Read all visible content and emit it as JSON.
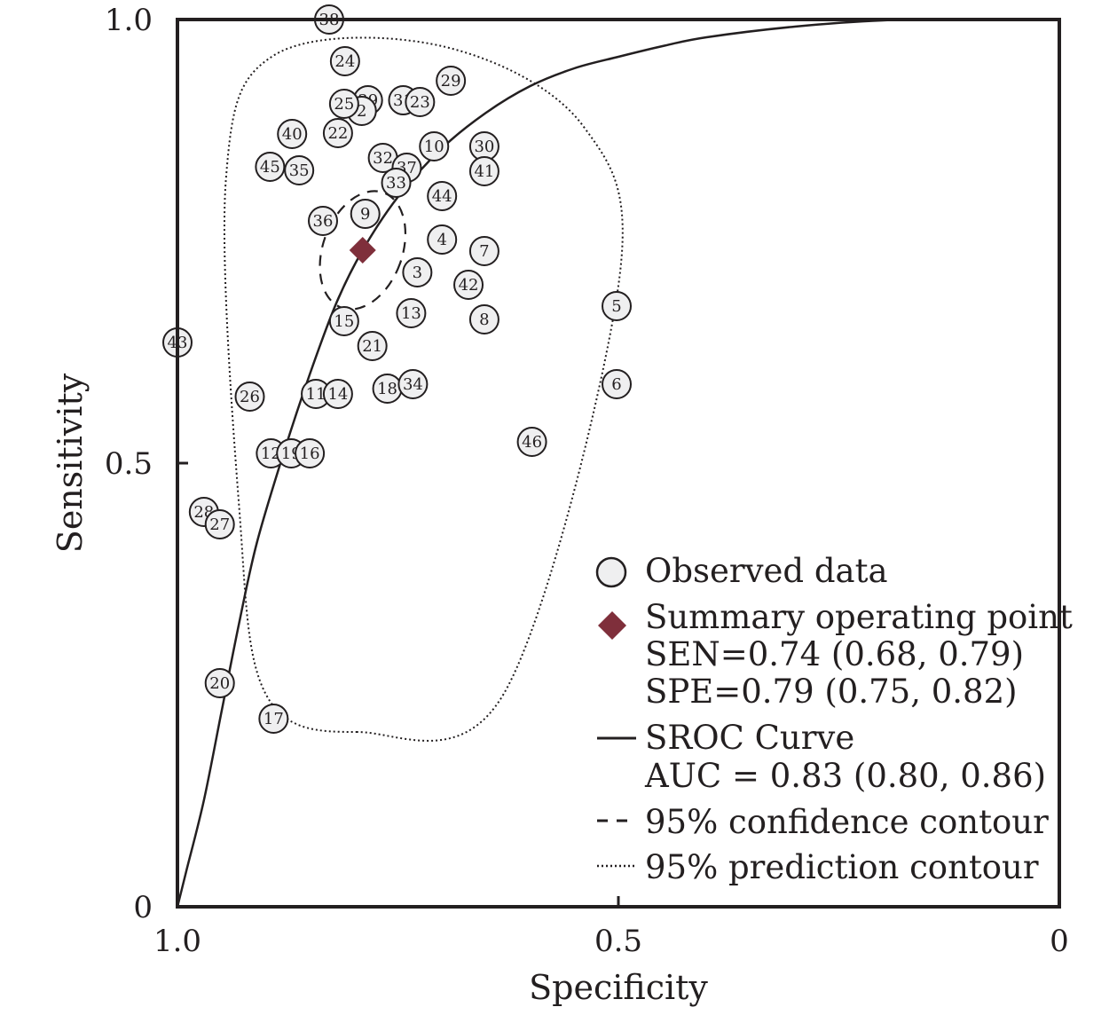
{
  "chart_data": {
    "type": "scatter",
    "xlabel": "Specificity",
    "ylabel": "Sensitivity",
    "x_reversed": true,
    "xlim": [
      1.0,
      0
    ],
    "ylim": [
      0,
      1.0
    ],
    "x_ticks": [
      {
        "value": 1.0,
        "label": "1.0"
      },
      {
        "value": 0.5,
        "label": "0.5"
      },
      {
        "value": 0,
        "label": "0"
      }
    ],
    "y_ticks": [
      {
        "value": 1.0,
        "label": "1.0"
      },
      {
        "value": 0.5,
        "label": "0.5"
      },
      {
        "value": 0,
        "label": "0"
      }
    ],
    "grid": false,
    "legend_position": "bottom-right",
    "studies": [
      {
        "id": "38",
        "spec": 0.828,
        "sens": 1.0
      },
      {
        "id": "24",
        "spec": 0.81,
        "sens": 0.953
      },
      {
        "id": "29",
        "spec": 0.69,
        "sens": 0.931
      },
      {
        "id": "39",
        "spec": 0.784,
        "sens": 0.909
      },
      {
        "id": "2",
        "spec": 0.791,
        "sens": 0.897
      },
      {
        "id": "25",
        "spec": 0.811,
        "sens": 0.905
      },
      {
        "id": "31",
        "spec": 0.744,
        "sens": 0.909
      },
      {
        "id": "23",
        "spec": 0.725,
        "sens": 0.907
      },
      {
        "id": "40",
        "spec": 0.87,
        "sens": 0.871
      },
      {
        "id": "22",
        "spec": 0.818,
        "sens": 0.872
      },
      {
        "id": "10",
        "spec": 0.709,
        "sens": 0.857
      },
      {
        "id": "30",
        "spec": 0.652,
        "sens": 0.857
      },
      {
        "id": "45",
        "spec": 0.895,
        "sens": 0.834
      },
      {
        "id": "35",
        "spec": 0.862,
        "sens": 0.83
      },
      {
        "id": "32",
        "spec": 0.767,
        "sens": 0.844
      },
      {
        "id": "37",
        "spec": 0.74,
        "sens": 0.833
      },
      {
        "id": "41",
        "spec": 0.652,
        "sens": 0.829
      },
      {
        "id": "33",
        "spec": 0.752,
        "sens": 0.816
      },
      {
        "id": "44",
        "spec": 0.7,
        "sens": 0.801
      },
      {
        "id": "36",
        "spec": 0.835,
        "sens": 0.773
      },
      {
        "id": "9",
        "spec": 0.787,
        "sens": 0.781
      },
      {
        "id": "4",
        "spec": 0.7,
        "sens": 0.752
      },
      {
        "id": "7",
        "spec": 0.652,
        "sens": 0.739
      },
      {
        "id": "3",
        "spec": 0.728,
        "sens": 0.715
      },
      {
        "id": "42",
        "spec": 0.67,
        "sens": 0.701
      },
      {
        "id": "5",
        "spec": 0.502,
        "sens": 0.677
      },
      {
        "id": "13",
        "spec": 0.735,
        "sens": 0.669
      },
      {
        "id": "15",
        "spec": 0.811,
        "sens": 0.66
      },
      {
        "id": "8",
        "spec": 0.652,
        "sens": 0.662
      },
      {
        "id": "43",
        "spec": 1.0,
        "sens": 0.636
      },
      {
        "id": "21",
        "spec": 0.779,
        "sens": 0.632
      },
      {
        "id": "26",
        "spec": 0.918,
        "sens": 0.575
      },
      {
        "id": "11",
        "spec": 0.843,
        "sens": 0.578
      },
      {
        "id": "14",
        "spec": 0.818,
        "sens": 0.578
      },
      {
        "id": "18",
        "spec": 0.762,
        "sens": 0.584
      },
      {
        "id": "34",
        "spec": 0.733,
        "sens": 0.589
      },
      {
        "id": "6",
        "spec": 0.502,
        "sens": 0.589
      },
      {
        "id": "46",
        "spec": 0.598,
        "sens": 0.524
      },
      {
        "id": "12",
        "spec": 0.894,
        "sens": 0.511
      },
      {
        "id": "19",
        "spec": 0.871,
        "sens": 0.511
      },
      {
        "id": "16",
        "spec": 0.85,
        "sens": 0.511
      },
      {
        "id": "28",
        "spec": 0.97,
        "sens": 0.445
      },
      {
        "id": "27",
        "spec": 0.952,
        "sens": 0.431
      },
      {
        "id": "20",
        "spec": 0.952,
        "sens": 0.252
      },
      {
        "id": "17",
        "spec": 0.891,
        "sens": 0.212
      }
    ],
    "summary_point": {
      "spec": 0.79,
      "sens": 0.74
    },
    "sroc_curve": [
      {
        "spec": 1.0,
        "sens": 0.0
      },
      {
        "spec": 0.99,
        "sens": 0.04
      },
      {
        "spec": 0.97,
        "sens": 0.12
      },
      {
        "spec": 0.95,
        "sens": 0.22
      },
      {
        "spec": 0.93,
        "sens": 0.32
      },
      {
        "spec": 0.91,
        "sens": 0.41
      },
      {
        "spec": 0.88,
        "sens": 0.51
      },
      {
        "spec": 0.85,
        "sens": 0.6
      },
      {
        "spec": 0.82,
        "sens": 0.68
      },
      {
        "spec": 0.79,
        "sens": 0.74
      },
      {
        "spec": 0.75,
        "sens": 0.8
      },
      {
        "spec": 0.7,
        "sens": 0.855
      },
      {
        "spec": 0.65,
        "sens": 0.895
      },
      {
        "spec": 0.6,
        "sens": 0.925
      },
      {
        "spec": 0.55,
        "sens": 0.945
      },
      {
        "spec": 0.5,
        "sens": 0.958
      },
      {
        "spec": 0.45,
        "sens": 0.97
      },
      {
        "spec": 0.4,
        "sens": 0.98
      },
      {
        "spec": 0.3,
        "sens": 0.992
      },
      {
        "spec": 0.2,
        "sens": 0.999
      },
      {
        "spec": 0.1,
        "sens": 1.0
      },
      {
        "spec": 0.0,
        "sens": 1.0
      }
    ],
    "confidence_contour": {
      "center_spec": 0.79,
      "center_sens": 0.74,
      "spec_radius": 0.045,
      "sens_radius": 0.069,
      "rotation_deg": 20
    },
    "prediction_contour": [
      {
        "spec": 0.796,
        "sens": 0.197
      },
      {
        "spec": 0.9,
        "sens": 0.24
      },
      {
        "spec": 0.93,
        "sens": 0.45
      },
      {
        "spec": 0.945,
        "sens": 0.82
      },
      {
        "spec": 0.89,
        "sens": 0.96
      },
      {
        "spec": 0.7,
        "sens": 0.97
      },
      {
        "spec": 0.54,
        "sens": 0.88
      },
      {
        "spec": 0.5,
        "sens": 0.7
      },
      {
        "spec": 0.63,
        "sens": 0.24
      }
    ],
    "legend": {
      "observed_label": "Observed data",
      "summary_label": "Summary operating point",
      "sen_text": "SEN=0.74 (0.68, 0.79)",
      "spe_text": "SPE=0.79 (0.75, 0.82)",
      "sroc_label": "SROC Curve",
      "auc_text": "AUC = 0.83 (0.80, 0.86)",
      "confidence_label": "95% confidence contour",
      "prediction_label": "95% prediction contour"
    },
    "colors": {
      "axis": "#231f20",
      "point_fill": "#efeff0",
      "point_stroke": "#231f20",
      "summary": "#7f2f3b"
    }
  }
}
